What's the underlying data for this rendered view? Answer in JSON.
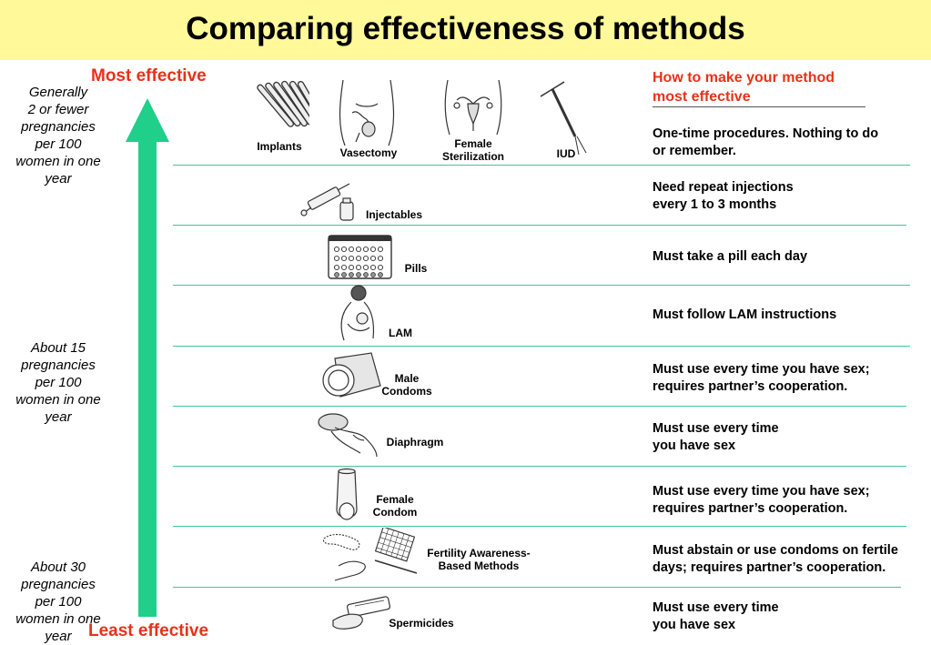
{
  "title": "Comparing effectiveness of methods",
  "scale": {
    "most": "Most effective",
    "least": "Least effective",
    "rate_top": "Generally\n2 or fewer\npregnancies\nper 100\nwomen in one\nyear",
    "rate_mid": "About 15\npregnancies\nper 100\nwomen in one\nyear",
    "rate_low": "About 30\npregnancies\nper 100\nwomen in one\nyear"
  },
  "right_heading": "How to make your method\nmost effective",
  "methods": {
    "implants": "Implants",
    "vasectomy": "Vasectomy",
    "female_sterilization": "Female\nSterilization",
    "iud": "IUD",
    "injectables": "Injectables",
    "pills": "Pills",
    "lam": "LAM",
    "male_condoms": "Male\nCondoms",
    "diaphragm": "Diaphragm",
    "female_condom": "Female\nCondom",
    "fertility": "Fertility Awareness-\nBased Methods",
    "spermicides": "Spermicides"
  },
  "instructions": {
    "row1": "One-time procedures. Nothing to do\nor remember.",
    "row2": "Need repeat injections\nevery 1 to 3 months",
    "row3": "Must take a pill each day",
    "row4": "Must follow LAM instructions",
    "row5": "Must use every time you have sex;\nrequires partner’s cooperation.",
    "row6": "Must use every time\nyou have sex",
    "row7": "Must use every time you have sex;\nrequires partner’s cooperation.",
    "row8": "Must abstain or use condoms on fertile\ndays; requires partner’s cooperation.",
    "row9": "Must use every time\nyou have sex"
  },
  "colors": {
    "header_bg": "#fff99a",
    "accent_red": "#e8311a",
    "arrow_green": "#1fcf8a",
    "divider_green": "#3fc79a"
  }
}
